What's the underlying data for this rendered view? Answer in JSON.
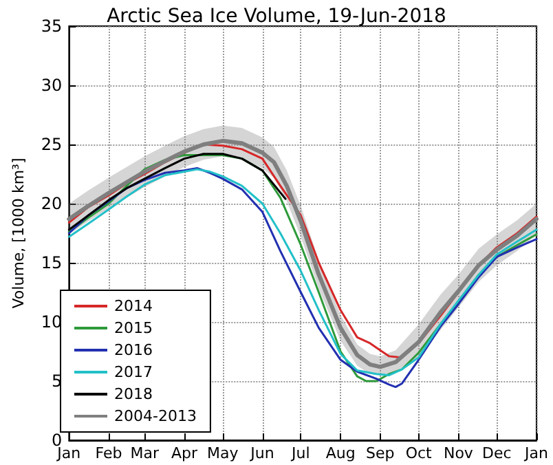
{
  "chart_data": {
    "type": "line",
    "title": "Arctic Sea Ice Volume, 19-Jun-2018",
    "ylabel": "Volume, [1000 km³]",
    "xlim": [
      "2018-01-01",
      "2019-01-01"
    ],
    "xticks": [
      {
        "value": "2018-01-01",
        "label": "Jan"
      },
      {
        "value": "2018-02-01",
        "label": "Feb"
      },
      {
        "value": "2018-03-01",
        "label": "Mar"
      },
      {
        "value": "2018-04-01",
        "label": "Apr"
      },
      {
        "value": "2018-05-01",
        "label": "May"
      },
      {
        "value": "2018-06-01",
        "label": "Jun"
      },
      {
        "value": "2018-07-01",
        "label": "Jul"
      },
      {
        "value": "2018-08-01",
        "label": "Aug"
      },
      {
        "value": "2018-09-01",
        "label": "Sep"
      },
      {
        "value": "2018-10-01",
        "label": "Oct"
      },
      {
        "value": "2018-11-01",
        "label": "Nov"
      },
      {
        "value": "2018-12-01",
        "label": "Dec"
      },
      {
        "value": "2019-01-01",
        "label": "Jan"
      }
    ],
    "ylim": [
      0,
      35
    ],
    "yticks": [
      0,
      5,
      10,
      15,
      20,
      25,
      30,
      35
    ],
    "grid": true,
    "legend": "bottom left",
    "line_style": "solid",
    "marker": "none",
    "series": [
      {
        "name": "2014",
        "color": "#d62728",
        "x": [
          "2018-01-01",
          "2018-01-16",
          "2018-02-01",
          "2018-02-15",
          "2018-03-01",
          "2018-03-17",
          "2018-04-01",
          "2018-04-16",
          "2018-05-01",
          "2018-05-16",
          "2018-06-01",
          "2018-06-15",
          "2018-07-01",
          "2018-07-15",
          "2018-08-01",
          "2018-08-14",
          "2018-08-24",
          "2018-09-01",
          "2018-09-08",
          "2018-09-16",
          "2018-10-01",
          "2018-10-18",
          "2018-11-01",
          "2018-11-17",
          "2018-12-01",
          "2018-12-17",
          "2019-01-01"
        ],
        "values": [
          18.4,
          19.7,
          20.7,
          21.7,
          22.5,
          23.5,
          24.3,
          25.0,
          24.9,
          24.6,
          23.8,
          21.5,
          19.0,
          15.0,
          11.0,
          8.7,
          8.2,
          7.6,
          7.1,
          7.0,
          8.2,
          10.5,
          12.5,
          14.8,
          16.3,
          17.5,
          18.9
        ]
      },
      {
        "name": "2015",
        "color": "#2e9a3a",
        "x": [
          "2018-01-01",
          "2018-01-16",
          "2018-02-01",
          "2018-02-15",
          "2018-03-01",
          "2018-03-17",
          "2018-04-01",
          "2018-04-16",
          "2018-05-01",
          "2018-05-16",
          "2018-06-01",
          "2018-06-15",
          "2018-07-01",
          "2018-07-15",
          "2018-08-01",
          "2018-08-14",
          "2018-08-21",
          "2018-08-29",
          "2018-09-08",
          "2018-09-18",
          "2018-10-01",
          "2018-10-18",
          "2018-11-01",
          "2018-11-17",
          "2018-12-01",
          "2018-12-17",
          "2019-01-01"
        ],
        "values": [
          17.6,
          18.8,
          20.0,
          21.5,
          22.9,
          23.7,
          24.1,
          24.1,
          24.1,
          23.8,
          22.8,
          20.5,
          16.5,
          12.5,
          7.5,
          5.4,
          5.0,
          5.0,
          5.6,
          6.0,
          7.4,
          9.8,
          11.7,
          14.0,
          15.5,
          16.5,
          17.4
        ]
      },
      {
        "name": "2016",
        "color": "#2230b0",
        "x": [
          "2018-01-01",
          "2018-01-16",
          "2018-02-01",
          "2018-02-15",
          "2018-03-01",
          "2018-03-17",
          "2018-04-01",
          "2018-04-11",
          "2018-04-21",
          "2018-05-01",
          "2018-05-16",
          "2018-06-01",
          "2018-06-15",
          "2018-07-01",
          "2018-07-15",
          "2018-08-01",
          "2018-08-14",
          "2018-08-29",
          "2018-09-08",
          "2018-09-13",
          "2018-09-18",
          "2018-10-01",
          "2018-10-18",
          "2018-11-01",
          "2018-11-17",
          "2018-12-01",
          "2018-12-17",
          "2019-01-01"
        ],
        "values": [
          17.5,
          19.0,
          20.2,
          21.3,
          22.0,
          22.6,
          22.8,
          23.0,
          22.6,
          22.1,
          21.2,
          19.3,
          16.0,
          12.5,
          9.5,
          6.8,
          5.8,
          5.2,
          4.7,
          4.5,
          4.8,
          6.8,
          9.6,
          11.5,
          13.8,
          15.5,
          16.3,
          17.0
        ]
      },
      {
        "name": "2017",
        "color": "#22c0c8",
        "x": [
          "2018-01-01",
          "2018-01-16",
          "2018-02-01",
          "2018-02-15",
          "2018-03-01",
          "2018-03-17",
          "2018-04-01",
          "2018-04-11",
          "2018-04-21",
          "2018-05-01",
          "2018-05-16",
          "2018-06-01",
          "2018-06-15",
          "2018-07-01",
          "2018-07-15",
          "2018-08-01",
          "2018-08-14",
          "2018-08-29",
          "2018-09-08",
          "2018-09-18",
          "2018-10-01",
          "2018-10-18",
          "2018-11-01",
          "2018-11-17",
          "2018-12-01",
          "2018-12-17",
          "2019-01-01"
        ],
        "values": [
          17.2,
          18.3,
          19.5,
          20.6,
          21.6,
          22.4,
          22.7,
          22.9,
          22.7,
          22.3,
          21.5,
          20.0,
          17.5,
          14.3,
          11.0,
          7.3,
          5.9,
          5.6,
          5.5,
          6.0,
          7.0,
          9.8,
          11.8,
          14.0,
          15.7,
          16.8,
          17.8
        ]
      },
      {
        "name": "2018",
        "color": "#000000",
        "x": [
          "2018-01-01",
          "2018-01-16",
          "2018-02-01",
          "2018-02-15",
          "2018-03-01",
          "2018-03-17",
          "2018-04-01",
          "2018-04-16",
          "2018-05-01",
          "2018-05-16",
          "2018-06-01",
          "2018-06-19"
        ],
        "values": [
          17.8,
          19.0,
          20.3,
          21.3,
          22.1,
          23.0,
          23.8,
          24.2,
          24.2,
          23.8,
          22.8,
          20.4
        ]
      },
      {
        "name": "2004-2013",
        "color": "#7f7f7f",
        "x": [
          "2018-01-01",
          "2018-01-16",
          "2018-02-01",
          "2018-02-15",
          "2018-03-01",
          "2018-03-17",
          "2018-04-01",
          "2018-04-16",
          "2018-05-01",
          "2018-05-16",
          "2018-06-01",
          "2018-06-10",
          "2018-06-20",
          "2018-07-01",
          "2018-07-15",
          "2018-08-01",
          "2018-08-14",
          "2018-08-24",
          "2018-09-01",
          "2018-09-13",
          "2018-10-01",
          "2018-10-18",
          "2018-11-01",
          "2018-11-17",
          "2018-12-01",
          "2018-12-17",
          "2019-01-01"
        ],
        "values": [
          18.7,
          19.8,
          20.9,
          21.8,
          22.7,
          23.6,
          24.4,
          25.0,
          25.3,
          25.1,
          24.3,
          23.5,
          21.5,
          18.5,
          14.0,
          9.5,
          7.2,
          6.4,
          6.2,
          6.6,
          8.3,
          10.8,
          12.6,
          14.8,
          16.1,
          17.3,
          18.7
        ],
        "lower": [
          17.4,
          18.5,
          19.6,
          20.5,
          21.4,
          22.3,
          23.1,
          23.7,
          24.0,
          23.8,
          23.0,
          22.2,
          20.2,
          17.2,
          12.8,
          8.4,
          6.3,
          5.6,
          5.5,
          5.8,
          7.0,
          9.3,
          11.2,
          13.4,
          14.8,
          16.0,
          17.4
        ],
        "upper": [
          20.0,
          21.1,
          22.2,
          23.1,
          24.0,
          24.9,
          25.7,
          26.3,
          26.6,
          26.4,
          25.6,
          24.8,
          22.8,
          19.8,
          15.2,
          10.6,
          8.1,
          7.3,
          7.1,
          7.6,
          9.8,
          12.3,
          14.0,
          16.2,
          17.4,
          18.6,
          20.0
        ]
      }
    ]
  }
}
